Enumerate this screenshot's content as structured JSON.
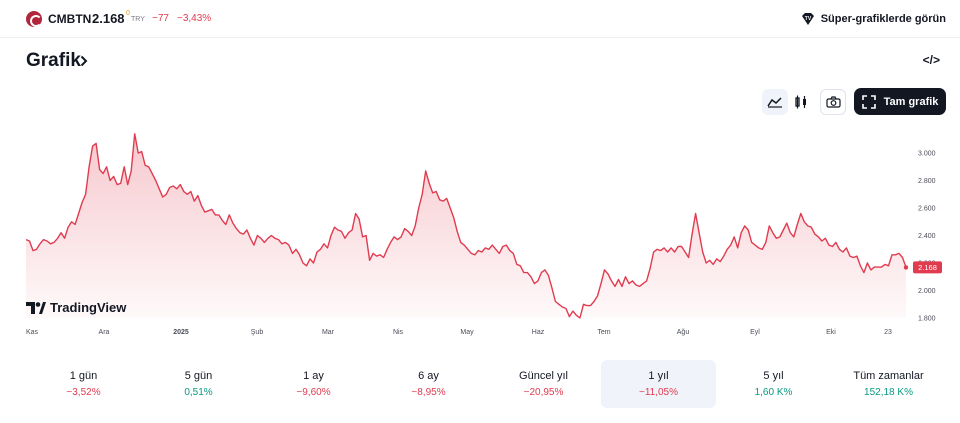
{
  "header": {
    "symbol": "CMBTN",
    "price": "2.168",
    "realtime_mark": "0",
    "currency": "TRY",
    "change": "−77",
    "change_percent": "−3,43%",
    "super_charts_label": "Süper-grafiklerde görün"
  },
  "section": {
    "title": "Grafik",
    "embed_label": "</>"
  },
  "toolbar": {
    "fullscreen_label": "Tam grafik"
  },
  "branding": {
    "logo_text": "TradingView"
  },
  "colors": {
    "line": "#e03b4f",
    "positive": "#089981",
    "negative": "#e03b4f"
  },
  "chart_data": {
    "type": "area",
    "x_ticks": [
      "Kas",
      "Ara",
      "2025",
      "Şub",
      "Mar",
      "Nis",
      "May",
      "Haz",
      "Tem",
      "Ağu",
      "Eyl",
      "Eki",
      "23"
    ],
    "y_ticks": [
      "3.000",
      "2.800",
      "2.600",
      "2.400",
      "2.200",
      "2.000",
      "1.800"
    ],
    "ylim": [
      1800,
      3000
    ],
    "last_value_label": "2.168",
    "values": [
      2370,
      2360,
      2290,
      2300,
      2340,
      2370,
      2360,
      2340,
      2350,
      2380,
      2420,
      2380,
      2460,
      2500,
      2480,
      2560,
      2640,
      2700,
      2900,
      3050,
      3070,
      2880,
      2850,
      2900,
      2800,
      2830,
      2770,
      2780,
      2900,
      2770,
      2870,
      3140,
      3000,
      3010,
      2910,
      2900,
      2850,
      2800,
      2740,
      2680,
      2700,
      2750,
      2760,
      2740,
      2770,
      2720,
      2700,
      2720,
      2650,
      2690,
      2620,
      2570,
      2580,
      2590,
      2550,
      2550,
      2510,
      2480,
      2550,
      2490,
      2450,
      2420,
      2410,
      2440,
      2380,
      2330,
      2400,
      2380,
      2350,
      2380,
      2400,
      2380,
      2370,
      2340,
      2350,
      2330,
      2270,
      2300,
      2260,
      2200,
      2180,
      2230,
      2200,
      2280,
      2300,
      2340,
      2310,
      2400,
      2460,
      2440,
      2430,
      2380,
      2420,
      2440,
      2560,
      2520,
      2390,
      2400,
      2220,
      2270,
      2250,
      2260,
      2240,
      2300,
      2350,
      2390,
      2370,
      2390,
      2450,
      2430,
      2400,
      2470,
      2600,
      2700,
      2870,
      2780,
      2710,
      2720,
      2660,
      2650,
      2670,
      2600,
      2530,
      2430,
      2350,
      2330,
      2300,
      2270,
      2260,
      2290,
      2280,
      2310,
      2300,
      2330,
      2300,
      2270,
      2320,
      2330,
      2290,
      2270,
      2190,
      2180,
      2130,
      2130,
      2100,
      2050,
      2070,
      2130,
      2150,
      2110,
      2020,
      1920,
      1900,
      1880,
      1870,
      1810,
      1850,
      1820,
      1800,
      1900,
      1890,
      1890,
      1920,
      1960,
      2050,
      2150,
      2120,
      2070,
      2030,
      2080,
      2030,
      2100,
      2050,
      2070,
      2040,
      2030,
      2050,
      2070,
      2160,
      2280,
      2300,
      2290,
      2310,
      2280,
      2310,
      2280,
      2320,
      2320,
      2280,
      2240,
      2410,
      2560,
      2420,
      2280,
      2200,
      2220,
      2190,
      2230,
      2210,
      2250,
      2300,
      2330,
      2390,
      2310,
      2420,
      2470,
      2440,
      2350,
      2330,
      2310,
      2300,
      2350,
      2470,
      2420,
      2380,
      2390,
      2440,
      2490,
      2420,
      2390,
      2480,
      2560,
      2500,
      2470,
      2460,
      2410,
      2390,
      2360,
      2380,
      2330,
      2320,
      2350,
      2300,
      2280,
      2310,
      2250,
      2240,
      2250,
      2180,
      2130,
      2200,
      2150,
      2170,
      2170,
      2170,
      2190,
      2180,
      2260,
      2260,
      2270,
      2240,
      2168
    ]
  },
  "periods": [
    {
      "label": "1 gün",
      "value": "−3,52%",
      "trend": "neg",
      "active": false
    },
    {
      "label": "5 gün",
      "value": "0,51%",
      "trend": "pos",
      "active": false
    },
    {
      "label": "1 ay",
      "value": "−9,60%",
      "trend": "neg",
      "active": false
    },
    {
      "label": "6 ay",
      "value": "−8,95%",
      "trend": "neg",
      "active": false
    },
    {
      "label": "Güncel yıl",
      "value": "−20,95%",
      "trend": "neg",
      "active": false
    },
    {
      "label": "1 yıl",
      "value": "−11,05%",
      "trend": "neg",
      "active": true
    },
    {
      "label": "5 yıl",
      "value": "1,60 K%",
      "trend": "pos",
      "active": false
    },
    {
      "label": "Tüm zamanlar",
      "value": "152,18 K%",
      "trend": "pos",
      "active": false
    }
  ]
}
